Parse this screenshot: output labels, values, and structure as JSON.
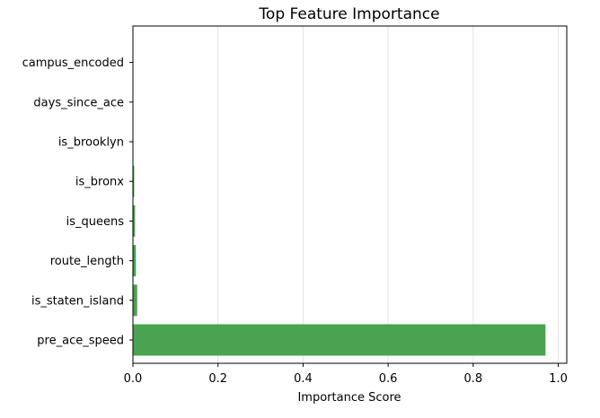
{
  "chart_data": {
    "type": "bar",
    "orientation": "horizontal",
    "title": "Top Feature Importance",
    "xlabel": "Importance Score",
    "ylabel": "",
    "categories": [
      "campus_encoded",
      "days_since_ace",
      "is_brooklyn",
      "is_bronx",
      "is_queens",
      "route_length",
      "is_staten_island",
      "pre_ace_speed"
    ],
    "values": [
      0.0,
      0.0,
      0.0,
      0.003,
      0.005,
      0.007,
      0.01,
      0.97
    ],
    "xlim": [
      0,
      1.02
    ],
    "xticks": [
      "0.0",
      "0.2",
      "0.4",
      "0.6",
      "0.8",
      "1.0"
    ],
    "xtick_values": [
      0.0,
      0.2,
      0.4,
      0.6,
      0.8,
      1.0
    ],
    "grid": "x",
    "bar_color": "#4aa350"
  }
}
